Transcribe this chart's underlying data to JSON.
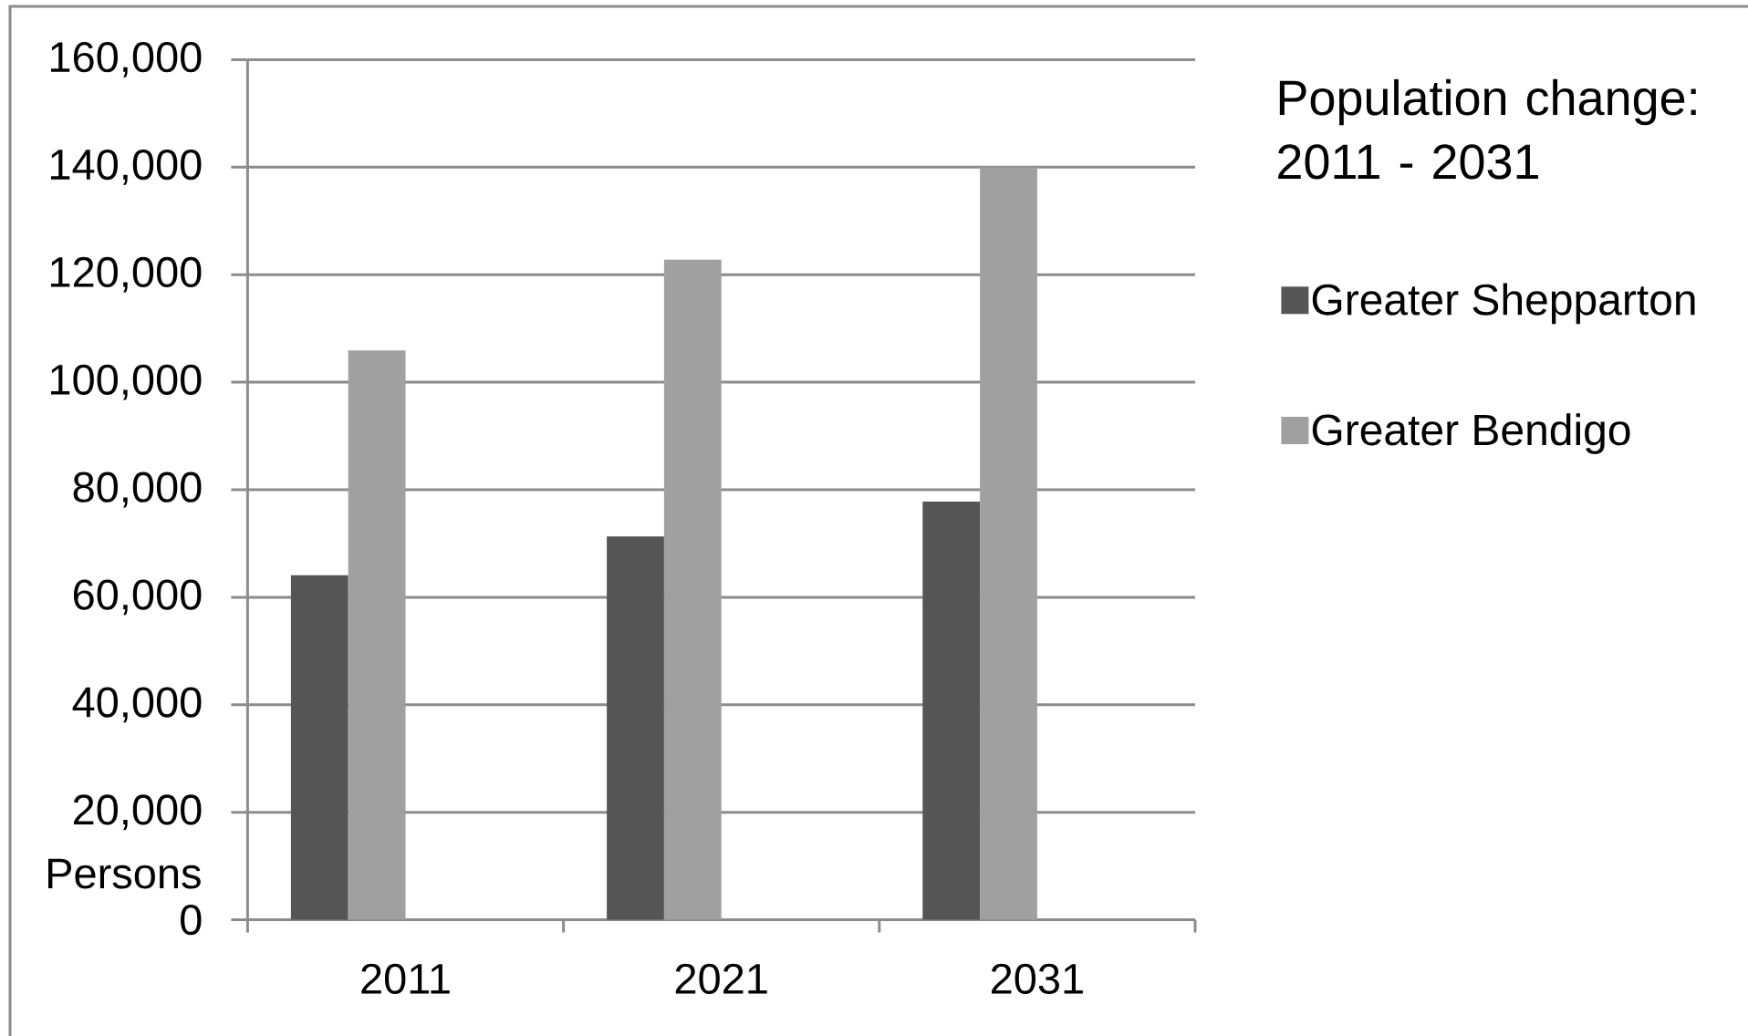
{
  "chart_data": {
    "type": "bar",
    "title": "Population change: 2011 - 2031",
    "ylabel": "Persons",
    "categories": [
      "2011",
      "2021",
      "2031"
    ],
    "series": [
      {
        "name": "Greater Shepparton",
        "color": "#555555",
        "values": [
          64100,
          71300,
          77800
        ]
      },
      {
        "name": "Greater Bendigo",
        "color": "#a0a0a0",
        "values": [
          105900,
          122800,
          140000
        ]
      }
    ],
    "ylim": [
      0,
      160000
    ],
    "yticks": [
      0,
      {
        "value": 20000,
        "label": "20,000"
      },
      {
        "value": 40000,
        "label": "40,000"
      },
      {
        "value": 60000,
        "label": "60,000"
      },
      {
        "value": 80000,
        "label": "80,000"
      },
      {
        "value": 100000,
        "label": "100,000"
      },
      {
        "value": 120000,
        "label": "120,000"
      },
      {
        "value": 140000,
        "label": "140,000"
      },
      {
        "value": 160000,
        "label": "160,000"
      }
    ],
    "grid": "y",
    "legend": "right"
  }
}
